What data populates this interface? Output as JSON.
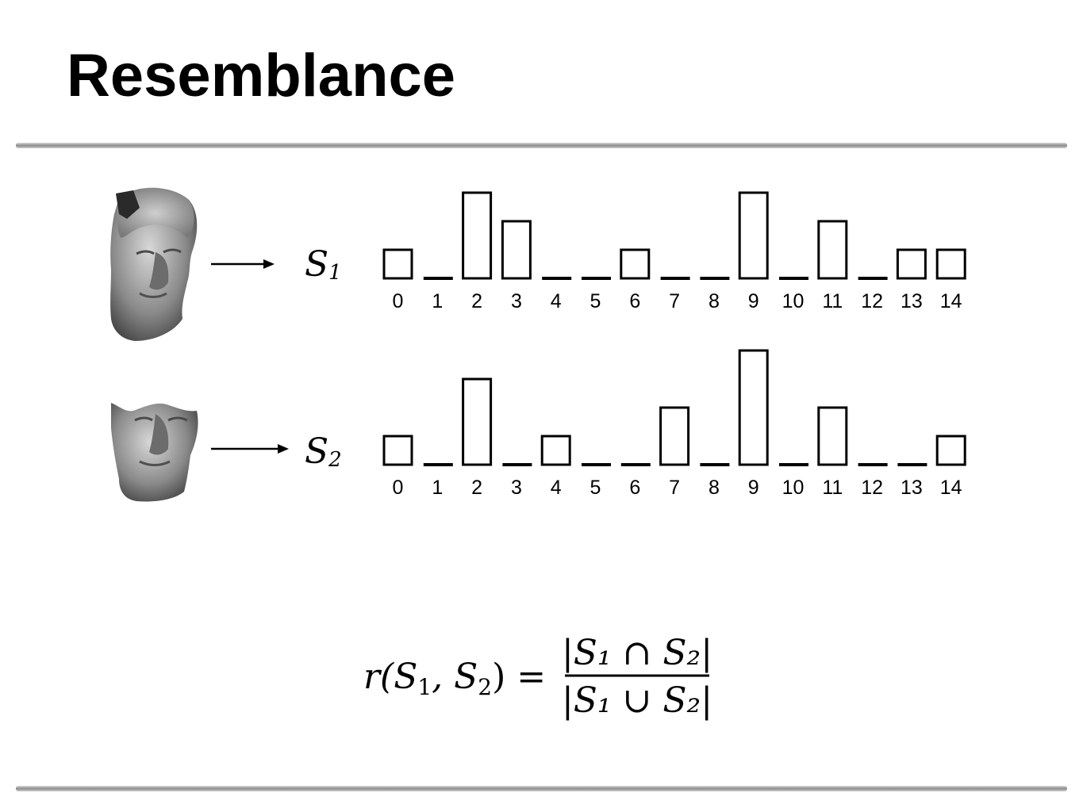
{
  "title": "Resemblance",
  "rows": [
    {
      "set_label": "S",
      "set_subscript": "1",
      "head_icon": "caesar-bust-full-icon",
      "values": [
        1,
        0,
        3,
        2,
        0,
        0,
        1,
        0,
        0,
        3,
        0,
        2,
        0,
        1,
        1
      ]
    },
    {
      "set_label": "S",
      "set_subscript": "2",
      "head_icon": "caesar-bust-partial-icon",
      "values": [
        1,
        0,
        3,
        0,
        1,
        0,
        0,
        2,
        0,
        4,
        0,
        2,
        0,
        0,
        1
      ]
    }
  ],
  "bins": [
    "0",
    "1",
    "2",
    "3",
    "4",
    "5",
    "6",
    "7",
    "8",
    "9",
    "10",
    "11",
    "12",
    "13",
    "14"
  ],
  "formula": {
    "lhs": "r(S",
    "lhs_sub1": "1",
    "lhs_mid": ", S",
    "lhs_sub2": "2",
    "lhs_end": ") =",
    "numerator": "|S₁ ∩ S₂|",
    "denominator": "|S₁ ∪ S₂|"
  }
}
